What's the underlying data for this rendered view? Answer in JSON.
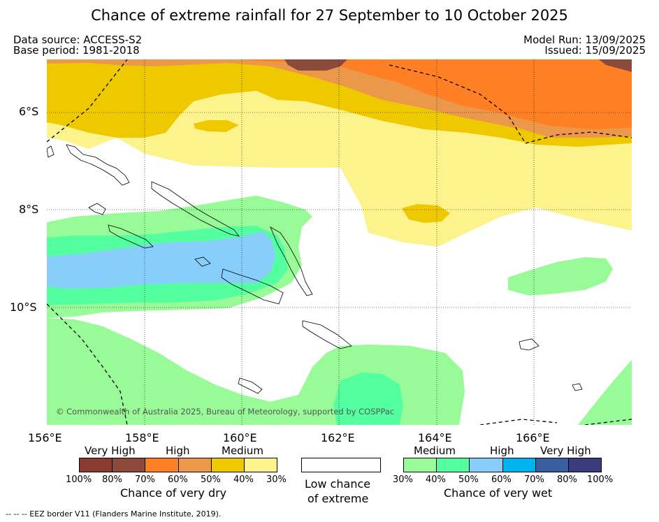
{
  "title": "Chance of extreme rainfall for 27 September to 10 October 2025",
  "header": {
    "data_source": "Data source: ACCESS-S2",
    "base_period": "Base period: 1981-2018",
    "model_run": "Model Run: 13/09/2025",
    "issued": "Issued: 15/09/2025"
  },
  "map": {
    "lat_labels": [
      "6°S",
      "8°S",
      "10°S"
    ],
    "lon_labels": [
      "156°E",
      "158°E",
      "160°E",
      "162°E",
      "164°E",
      "166°E"
    ],
    "copyright": "© Commonwealth of Australia 2025, Bureau of Meteorology, supported by COSPPac"
  },
  "legend": {
    "dry": {
      "levels": [
        "Very High",
        "High",
        "Medium"
      ],
      "colors": [
        "#8b3a30",
        "#8c4a3a",
        "#ff7f24",
        "#eb984b",
        "#eec900",
        "#fdf38d"
      ],
      "ticks": [
        "100%",
        "80%",
        "70%",
        "60%",
        "50%",
        "40%",
        "30%"
      ],
      "label": "Chance of very dry"
    },
    "low": {
      "line1": "Low chance",
      "line2": "of extreme"
    },
    "wet": {
      "levels": [
        "Medium",
        "High",
        "Very High"
      ],
      "colors": [
        "#98fb98",
        "#54ff9f",
        "#87cefa",
        "#00b2ee",
        "#3a5fa0",
        "#3b3b7e"
      ],
      "ticks": [
        "30%",
        "40%",
        "50%",
        "60%",
        "70%",
        "80%",
        "100%"
      ],
      "label": "Chance of very wet"
    }
  },
  "footnote": "--  --  -- EEZ border V11 (Flanders Marine Institute, 2019)."
}
